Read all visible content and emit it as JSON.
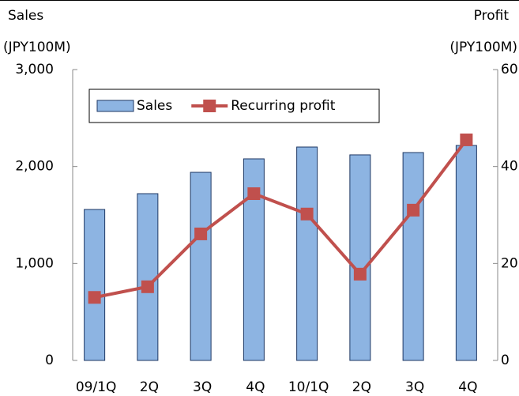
{
  "chart_data": {
    "type": "bar_line",
    "y_label_lines": [
      "Sales",
      "(JPY100M)"
    ],
    "y2_label_lines": [
      "Profit",
      "(JPY100M)"
    ],
    "categories": [
      "09/1Q",
      "2Q",
      "3Q",
      "4Q",
      "10/1Q",
      "2Q",
      "3Q",
      "4Q"
    ],
    "series": [
      {
        "name": "Sales",
        "type": "bar",
        "color": "#8db4e2",
        "values": [
          1557,
          1720,
          1940,
          2079,
          2201,
          2120,
          2144,
          2217
        ]
      },
      {
        "name": "Recurring profit",
        "type": "line",
        "axis": "y2",
        "color": "#c0504d",
        "values": [
          13.0,
          15.2,
          26.1,
          34.4,
          30.2,
          17.8,
          31.0,
          45.5
        ]
      }
    ],
    "ylim": [
      0,
      3000
    ],
    "yticks": [
      0,
      {
        "value": 1000,
        "label": "1,000"
      },
      {
        "value": 2000,
        "label": "2,000"
      },
      {
        "value": 3000,
        "label": "3,000"
      }
    ],
    "y2lim": [
      0,
      60
    ],
    "y2ticks": [
      0,
      20,
      40,
      60
    ],
    "legend": "upper left"
  }
}
